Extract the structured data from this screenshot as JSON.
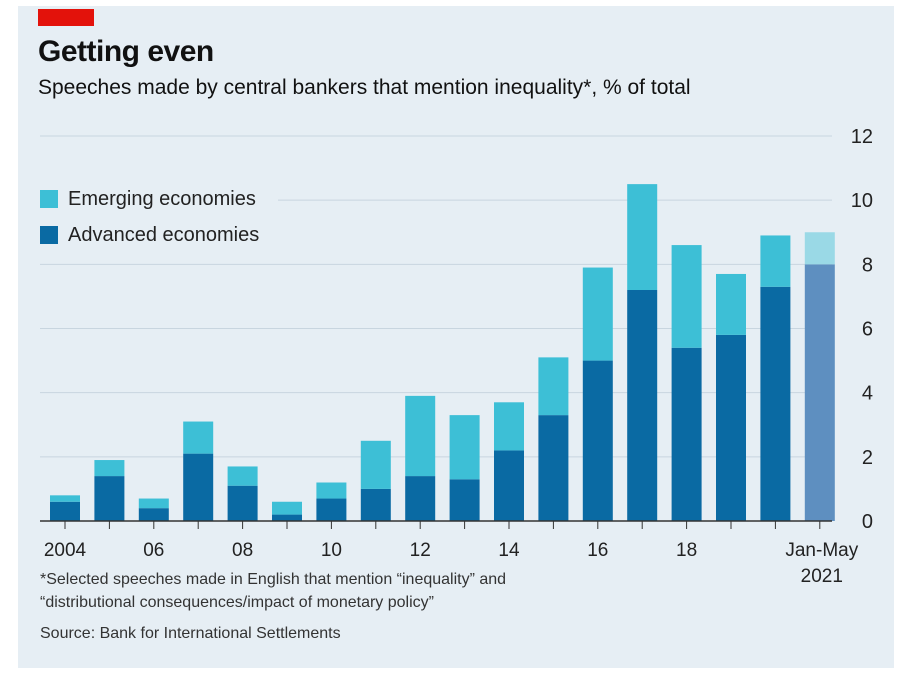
{
  "header": {
    "title": "Getting even",
    "subtitle": "Speeches made by central bankers that mention inequality*, % of total"
  },
  "legend": [
    {
      "label": "Emerging economies",
      "color": "#3dbfd6"
    },
    {
      "label": "Advanced economies",
      "color": "#0a6aa3"
    }
  ],
  "footnotes": {
    "note_line1": "*Selected speeches made in English that mention “inequality” and",
    "note_line2": "“distributional consequences/impact of monetary policy”",
    "source": "Source: Bank for International Settlements"
  },
  "chart_data": {
    "type": "bar",
    "stacked": true,
    "x": [
      "2004",
      "2005",
      "2006",
      "2007",
      "2008",
      "2009",
      "2010",
      "2011",
      "2012",
      "2013",
      "2014",
      "2015",
      "2016",
      "2017",
      "2018",
      "2019",
      "2020",
      "Jan-May 2021"
    ],
    "x_tick_labels": [
      "2004",
      "06",
      "08",
      "10",
      "12",
      "14",
      "16",
      "18"
    ],
    "last_label_line1": "Jan-May",
    "last_label_line2": "2021",
    "series": [
      {
        "name": "Advanced economies",
        "color": "#0a6aa3",
        "values": [
          0.6,
          1.4,
          0.4,
          2.1,
          1.1,
          0.2,
          0.7,
          1.0,
          1.4,
          1.3,
          2.2,
          3.3,
          5.0,
          7.2,
          5.4,
          5.8,
          7.3,
          8.0
        ]
      },
      {
        "name": "Emerging economies",
        "color": "#3dbfd6",
        "values": [
          0.2,
          0.5,
          0.3,
          1.0,
          0.6,
          0.4,
          0.5,
          1.5,
          2.5,
          2.0,
          1.5,
          1.8,
          2.9,
          3.3,
          3.2,
          1.9,
          1.6,
          1.0
        ]
      }
    ],
    "ylim": [
      0,
      12
    ],
    "yticks": [
      0,
      2,
      4,
      6,
      8,
      10,
      12
    ],
    "last_bar_faded": true,
    "faded_colors": {
      "advanced": "#5e8fc0",
      "emerging": "#9ad9e6"
    },
    "grid": true,
    "legend_position": "top-left"
  }
}
